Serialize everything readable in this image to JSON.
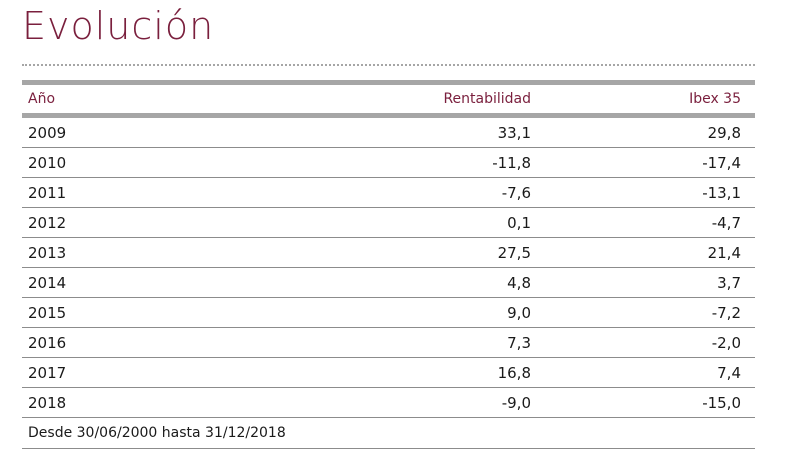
{
  "title": "Evolución",
  "table": {
    "headers": {
      "year": "Año",
      "rentabilidad": "Rentabilidad",
      "ibex": "Ibex 35"
    },
    "rows": [
      {
        "year": "2009",
        "rentabilidad": "33,1",
        "ibex": "29,8"
      },
      {
        "year": "2010",
        "rentabilidad": "-11,8",
        "ibex": "-17,4"
      },
      {
        "year": "2011",
        "rentabilidad": "-7,6",
        "ibex": "-13,1"
      },
      {
        "year": "2012",
        "rentabilidad": "0,1",
        "ibex": "-4,7"
      },
      {
        "year": "2013",
        "rentabilidad": "27,5",
        "ibex": "21,4"
      },
      {
        "year": "2014",
        "rentabilidad": "4,8",
        "ibex": "3,7"
      },
      {
        "year": "2015",
        "rentabilidad": "9,0",
        "ibex": "-7,2"
      },
      {
        "year": "2016",
        "rentabilidad": "7,3",
        "ibex": "-2,0"
      },
      {
        "year": "2017",
        "rentabilidad": "16,8",
        "ibex": "7,4"
      },
      {
        "year": "2018",
        "rentabilidad": "-9,0",
        "ibex": "-15,0"
      }
    ],
    "footer": "Desde 30/06/2000 hasta 31/12/2018"
  },
  "colors": {
    "accent": "#7a1f3d",
    "rule": "#a6a6a6"
  }
}
